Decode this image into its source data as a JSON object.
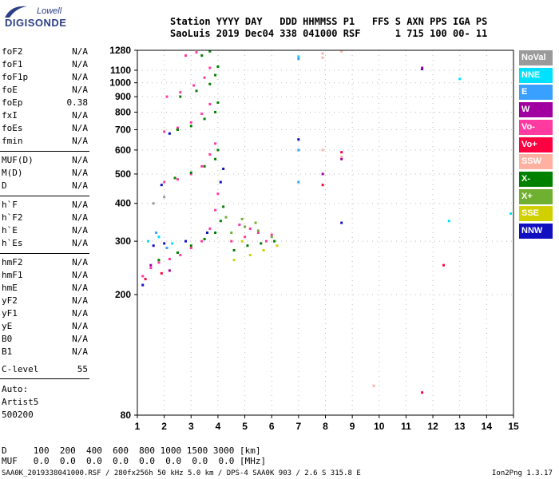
{
  "logo": {
    "brand": "Lowell",
    "product": "DIGISONDE"
  },
  "header": {
    "line1": "Station YYYY DAY   DDD HHMMSS P1   FFS S AXN PPS IGA PS",
    "line2": "SaoLuis 2019 Dec04 338 041000 RSF      1 715 100 00- 11"
  },
  "params": [
    {
      "name": "foF2",
      "value": "N/A"
    },
    {
      "name": "foF1",
      "value": "N/A"
    },
    {
      "name": "foF1p",
      "value": "N/A"
    },
    {
      "name": "foE",
      "value": "N/A"
    },
    {
      "name": "foEp",
      "value": "0.38"
    },
    {
      "name": "fxI",
      "value": "N/A"
    },
    {
      "name": "foEs",
      "value": "N/A"
    },
    {
      "name": "fmin",
      "value": "N/A"
    },
    {
      "name": "MUF(D)",
      "value": "N/A"
    },
    {
      "name": "M(D)",
      "value": "N/A"
    },
    {
      "name": "D",
      "value": "N/A"
    },
    {
      "name": "h`F",
      "value": "N/A"
    },
    {
      "name": "h`F2",
      "value": "N/A"
    },
    {
      "name": "h`E",
      "value": "N/A"
    },
    {
      "name": "h`Es",
      "value": "N/A"
    },
    {
      "name": "hmF2",
      "value": "N/A"
    },
    {
      "name": "hmF1",
      "value": "N/A"
    },
    {
      "name": "hmE",
      "value": "N/A"
    },
    {
      "name": "yF2",
      "value": "N/A"
    },
    {
      "name": "yF1",
      "value": "N/A"
    },
    {
      "name": "yE",
      "value": "N/A"
    },
    {
      "name": "B0",
      "value": "N/A"
    },
    {
      "name": "B1",
      "value": "N/A"
    }
  ],
  "clevel": {
    "name": "C-level",
    "value": "55"
  },
  "auto": {
    "line1": "Auto:",
    "line2": "Artist5",
    "line3": "500200"
  },
  "legend": [
    {
      "label": "NoVal",
      "color": "#9a9a9a"
    },
    {
      "label": "NNE",
      "color": "#00e0ff"
    },
    {
      "label": "E",
      "color": "#3aa0ff"
    },
    {
      "label": "W",
      "color": "#a000a0"
    },
    {
      "label": "Vo-",
      "color": "#ff3aa0"
    },
    {
      "label": "Vo+",
      "color": "#ff0040"
    },
    {
      "label": "SSW",
      "color": "#ffb0a0"
    },
    {
      "label": "X-",
      "color": "#008000"
    },
    {
      "label": "X+",
      "color": "#70b030"
    },
    {
      "label": "SSE",
      "color": "#d0d000"
    },
    {
      "label": "NNW",
      "color": "#1010c0"
    }
  ],
  "bottom": {
    "row1": "D     100  200  400  600  800 1000 1500 3000 [km]",
    "row2": "MUF   0.0  0.0  0.0  0.0  0.0  0.0  0.0  0.0 [MHz]",
    "footer_left": "SAA0K_2019338041000.RSF / 280fx256h 50 kHz 5.0 km / DPS-4 SAA0K 903 / 2.6 S 315.8 E",
    "footer_right": "Ion2Png 1.3.17"
  },
  "chart_data": {
    "type": "scatter",
    "title": "",
    "xlabel": "",
    "ylabel": "",
    "xlim": [
      1,
      15
    ],
    "ylim": [
      80,
      1280
    ],
    "x_ticks": [
      1,
      2,
      3,
      4,
      5,
      6,
      7,
      8,
      9,
      10,
      11,
      12,
      13,
      14,
      15
    ],
    "y_ticks": [
      80,
      200,
      300,
      400,
      500,
      600,
      700,
      800,
      900,
      1000,
      1100,
      1280
    ],
    "grid": true,
    "legend_position": "right",
    "series": [
      {
        "name": "Vo-",
        "color": "#ff3aa0",
        "points": [
          [
            1.2,
            230
          ],
          [
            1.5,
            245
          ],
          [
            1.8,
            255
          ],
          [
            2.2,
            262
          ],
          [
            2.6,
            270
          ],
          [
            3.0,
            285
          ],
          [
            3.4,
            300
          ],
          [
            3.7,
            330
          ],
          [
            3.9,
            380
          ],
          [
            4.0,
            430
          ],
          [
            2.0,
            470
          ],
          [
            2.5,
            480
          ],
          [
            3.0,
            500
          ],
          [
            3.4,
            530
          ],
          [
            3.7,
            580
          ],
          [
            3.9,
            630
          ],
          [
            2.0,
            690
          ],
          [
            2.5,
            710
          ],
          [
            3.0,
            740
          ],
          [
            3.4,
            790
          ],
          [
            3.7,
            850
          ],
          [
            2.1,
            900
          ],
          [
            2.6,
            930
          ],
          [
            3.1,
            980
          ],
          [
            3.5,
            1040
          ],
          [
            3.7,
            1120
          ],
          [
            2.8,
            1230
          ],
          [
            3.2,
            1260
          ],
          [
            4.5,
            300
          ],
          [
            5.0,
            310
          ],
          [
            5.5,
            320
          ],
          [
            6.0,
            315
          ],
          [
            4.8,
            340
          ],
          [
            5.2,
            330
          ],
          [
            5.8,
            300
          ]
        ]
      },
      {
        "name": "X-",
        "color": "#008000",
        "points": [
          [
            1.8,
            260
          ],
          [
            2.5,
            275
          ],
          [
            3.0,
            290
          ],
          [
            3.5,
            305
          ],
          [
            3.9,
            320
          ],
          [
            4.1,
            350
          ],
          [
            4.2,
            390
          ],
          [
            2.4,
            485
          ],
          [
            3.0,
            505
          ],
          [
            3.5,
            530
          ],
          [
            3.9,
            560
          ],
          [
            4.0,
            600
          ],
          [
            2.5,
            700
          ],
          [
            3.0,
            720
          ],
          [
            3.5,
            760
          ],
          [
            3.9,
            800
          ],
          [
            4.0,
            860
          ],
          [
            2.6,
            900
          ],
          [
            3.2,
            940
          ],
          [
            3.7,
            990
          ],
          [
            3.9,
            1060
          ],
          [
            4.0,
            1130
          ],
          [
            3.4,
            1230
          ],
          [
            3.7,
            1270
          ],
          [
            4.6,
            280
          ],
          [
            5.1,
            290
          ],
          [
            5.6,
            295
          ],
          [
            6.1,
            300
          ]
        ]
      },
      {
        "name": "X+",
        "color": "#70b030",
        "points": [
          [
            4.5,
            320
          ],
          [
            5.0,
            335
          ],
          [
            5.5,
            325
          ],
          [
            6.0,
            310
          ],
          [
            4.3,
            360
          ],
          [
            4.9,
            355
          ],
          [
            5.4,
            345
          ]
        ]
      },
      {
        "name": "SSE",
        "color": "#d0d000",
        "points": [
          [
            4.6,
            260
          ],
          [
            5.2,
            270
          ],
          [
            5.7,
            280
          ],
          [
            6.2,
            290
          ],
          [
            4.9,
            300
          ]
        ]
      },
      {
        "name": "NNW",
        "color": "#1010c0",
        "points": [
          [
            1.2,
            215
          ],
          [
            1.6,
            290
          ],
          [
            2.0,
            295
          ],
          [
            2.8,
            300
          ],
          [
            3.6,
            320
          ],
          [
            4.1,
            470
          ],
          [
            4.2,
            520
          ],
          [
            1.9,
            460
          ],
          [
            2.2,
            680
          ],
          [
            7.0,
            650
          ],
          [
            8.6,
            345
          ],
          [
            11.6,
            1110
          ]
        ]
      },
      {
        "name": "NNE",
        "color": "#00e0ff",
        "points": [
          [
            1.4,
            300
          ],
          [
            1.8,
            310
          ],
          [
            2.3,
            295
          ],
          [
            7.0,
            1220
          ],
          [
            13.0,
            1030
          ],
          [
            14.9,
            370
          ],
          [
            12.6,
            350
          ]
        ]
      },
      {
        "name": "E",
        "color": "#3aa0ff",
        "points": [
          [
            1.7,
            320
          ],
          [
            2.1,
            285
          ],
          [
            7.0,
            1200
          ],
          [
            7.0,
            470
          ],
          [
            7.0,
            600
          ]
        ]
      },
      {
        "name": "W",
        "color": "#a000a0",
        "points": [
          [
            1.5,
            250
          ],
          [
            2.2,
            240
          ],
          [
            11.6,
            1120
          ],
          [
            7.9,
            500
          ],
          [
            8.6,
            560
          ]
        ]
      },
      {
        "name": "Vo+",
        "color": "#ff0040",
        "points": [
          [
            1.3,
            225
          ],
          [
            1.9,
            235
          ],
          [
            7.9,
            460
          ],
          [
            8.6,
            590
          ],
          [
            11.6,
            95
          ],
          [
            12.4,
            250
          ]
        ]
      },
      {
        "name": "SSW",
        "color": "#ffb0a0",
        "points": [
          [
            7.9,
            1250
          ],
          [
            7.9,
            1210
          ],
          [
            7.9,
            600
          ],
          [
            8.6,
            570
          ],
          [
            8.6,
            1270
          ],
          [
            9.8,
            100
          ]
        ]
      },
      {
        "name": "NoVal",
        "color": "#9a9a9a",
        "points": [
          [
            1.6,
            400
          ],
          [
            2.0,
            420
          ]
        ]
      }
    ]
  }
}
